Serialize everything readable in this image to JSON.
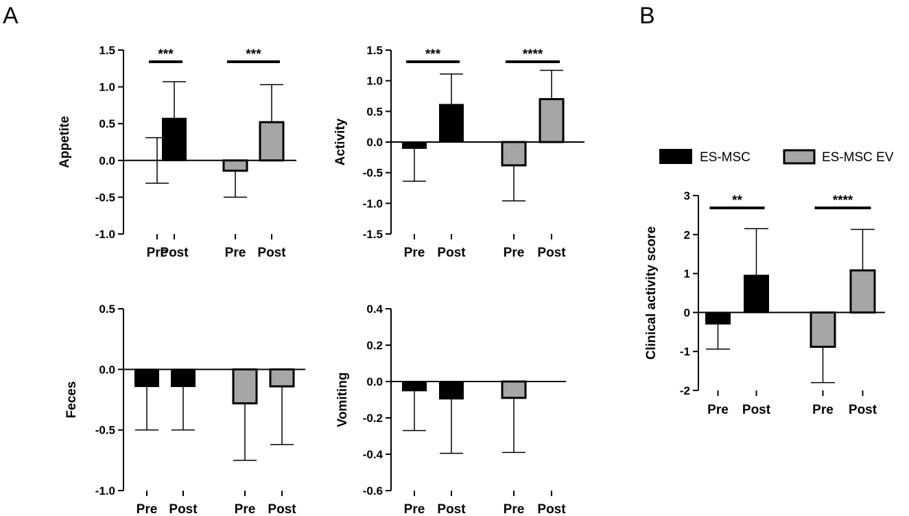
{
  "panels": {
    "A": "A",
    "B": "B"
  },
  "legend": {
    "items": [
      {
        "name": "ES-MSC",
        "color": "#000000"
      },
      {
        "name": "ES-MSC EV",
        "color": "#a6a6a6"
      }
    ]
  },
  "chart_data": [
    {
      "id": "appetite",
      "type": "bar",
      "ylabel": "Appetite",
      "ylim": [
        -1.0,
        1.5
      ],
      "yticks": [
        -1.0,
        -0.5,
        0.0,
        0.5,
        1.0,
        1.5
      ],
      "yticklabels": [
        "-1.0",
        "-0.5",
        "0.0",
        "0.5",
        "1.0",
        "1.5"
      ],
      "categories": [
        "Pre",
        "Post",
        "Pre",
        "Post"
      ],
      "groups": [
        "ES-MSC",
        "ES-MSC",
        "ES-MSC EV",
        "ES-MSC EV"
      ],
      "values": [
        0.0,
        0.57,
        -0.14,
        0.52
      ],
      "errors": [
        0.31,
        0.5,
        0.36,
        0.51
      ],
      "significance": [
        {
          "from": 0,
          "to": 1,
          "label": "***"
        },
        {
          "from": 2,
          "to": 3,
          "label": "***"
        }
      ]
    },
    {
      "id": "activity",
      "type": "bar",
      "ylabel": "Activity",
      "ylim": [
        -1.5,
        1.5
      ],
      "yticks": [
        -1.5,
        -1.0,
        -0.5,
        0.0,
        0.5,
        1.0,
        1.5
      ],
      "yticklabels": [
        "-1.5",
        "-1.0",
        "-0.5",
        "0.0",
        "0.5",
        "1.0",
        "1.5"
      ],
      "categories": [
        "Pre",
        "Post",
        "Pre",
        "Post"
      ],
      "groups": [
        "ES-MSC",
        "ES-MSC",
        "ES-MSC EV",
        "ES-MSC EV"
      ],
      "values": [
        -0.1,
        0.61,
        -0.38,
        0.7
      ],
      "errors": [
        0.54,
        0.5,
        0.58,
        0.47
      ],
      "significance": [
        {
          "from": 0,
          "to": 1,
          "label": "***"
        },
        {
          "from": 2,
          "to": 3,
          "label": "****"
        }
      ]
    },
    {
      "id": "feces",
      "type": "bar",
      "ylabel": "Feces",
      "ylim": [
        -1.0,
        0.5
      ],
      "yticks": [
        -1.0,
        -0.5,
        0.0,
        0.5
      ],
      "yticklabels": [
        "-1.0",
        "-0.5",
        "0.0",
        "0.5"
      ],
      "categories": [
        "Pre",
        "Post",
        "Pre",
        "Post"
      ],
      "groups": [
        "ES-MSC",
        "ES-MSC",
        "ES-MSC EV",
        "ES-MSC EV"
      ],
      "values": [
        -0.14,
        -0.14,
        -0.28,
        -0.14
      ],
      "errors": [
        0.36,
        0.36,
        0.47,
        0.48
      ],
      "significance": []
    },
    {
      "id": "vomiting",
      "type": "bar",
      "ylabel": "Vomiting",
      "ylim": [
        -0.6,
        0.4
      ],
      "yticks": [
        -0.6,
        -0.4,
        -0.2,
        0.0,
        0.2,
        0.4
      ],
      "yticklabels": [
        "-0.6",
        "-0.4",
        "-0.2",
        "0.0",
        "0.2",
        "0.4"
      ],
      "categories": [
        "Pre",
        "Post",
        "Pre",
        "Post"
      ],
      "groups": [
        "ES-MSC",
        "ES-MSC",
        "ES-MSC EV",
        "ES-MSC EV"
      ],
      "values": [
        -0.05,
        -0.095,
        -0.09,
        0.0
      ],
      "errors": [
        0.22,
        0.3,
        0.3,
        0.0
      ],
      "significance": []
    },
    {
      "id": "clinical",
      "type": "bar",
      "ylabel": "Clinical activity score",
      "ylim": [
        -2,
        3
      ],
      "yticks": [
        -2,
        -1,
        0,
        1,
        2,
        3
      ],
      "yticklabels": [
        "-2",
        "-1",
        "0",
        "1",
        "2",
        "3"
      ],
      "categories": [
        "Pre",
        "Post",
        "Pre",
        "Post"
      ],
      "groups": [
        "ES-MSC",
        "ES-MSC",
        "ES-MSC EV",
        "ES-MSC EV"
      ],
      "values": [
        -0.29,
        0.95,
        -0.88,
        1.08
      ],
      "errors": [
        0.65,
        1.2,
        0.92,
        1.05
      ],
      "significance": [
        {
          "from": 0,
          "to": 1,
          "label": "**"
        },
        {
          "from": 2,
          "to": 3,
          "label": "****"
        }
      ]
    }
  ]
}
